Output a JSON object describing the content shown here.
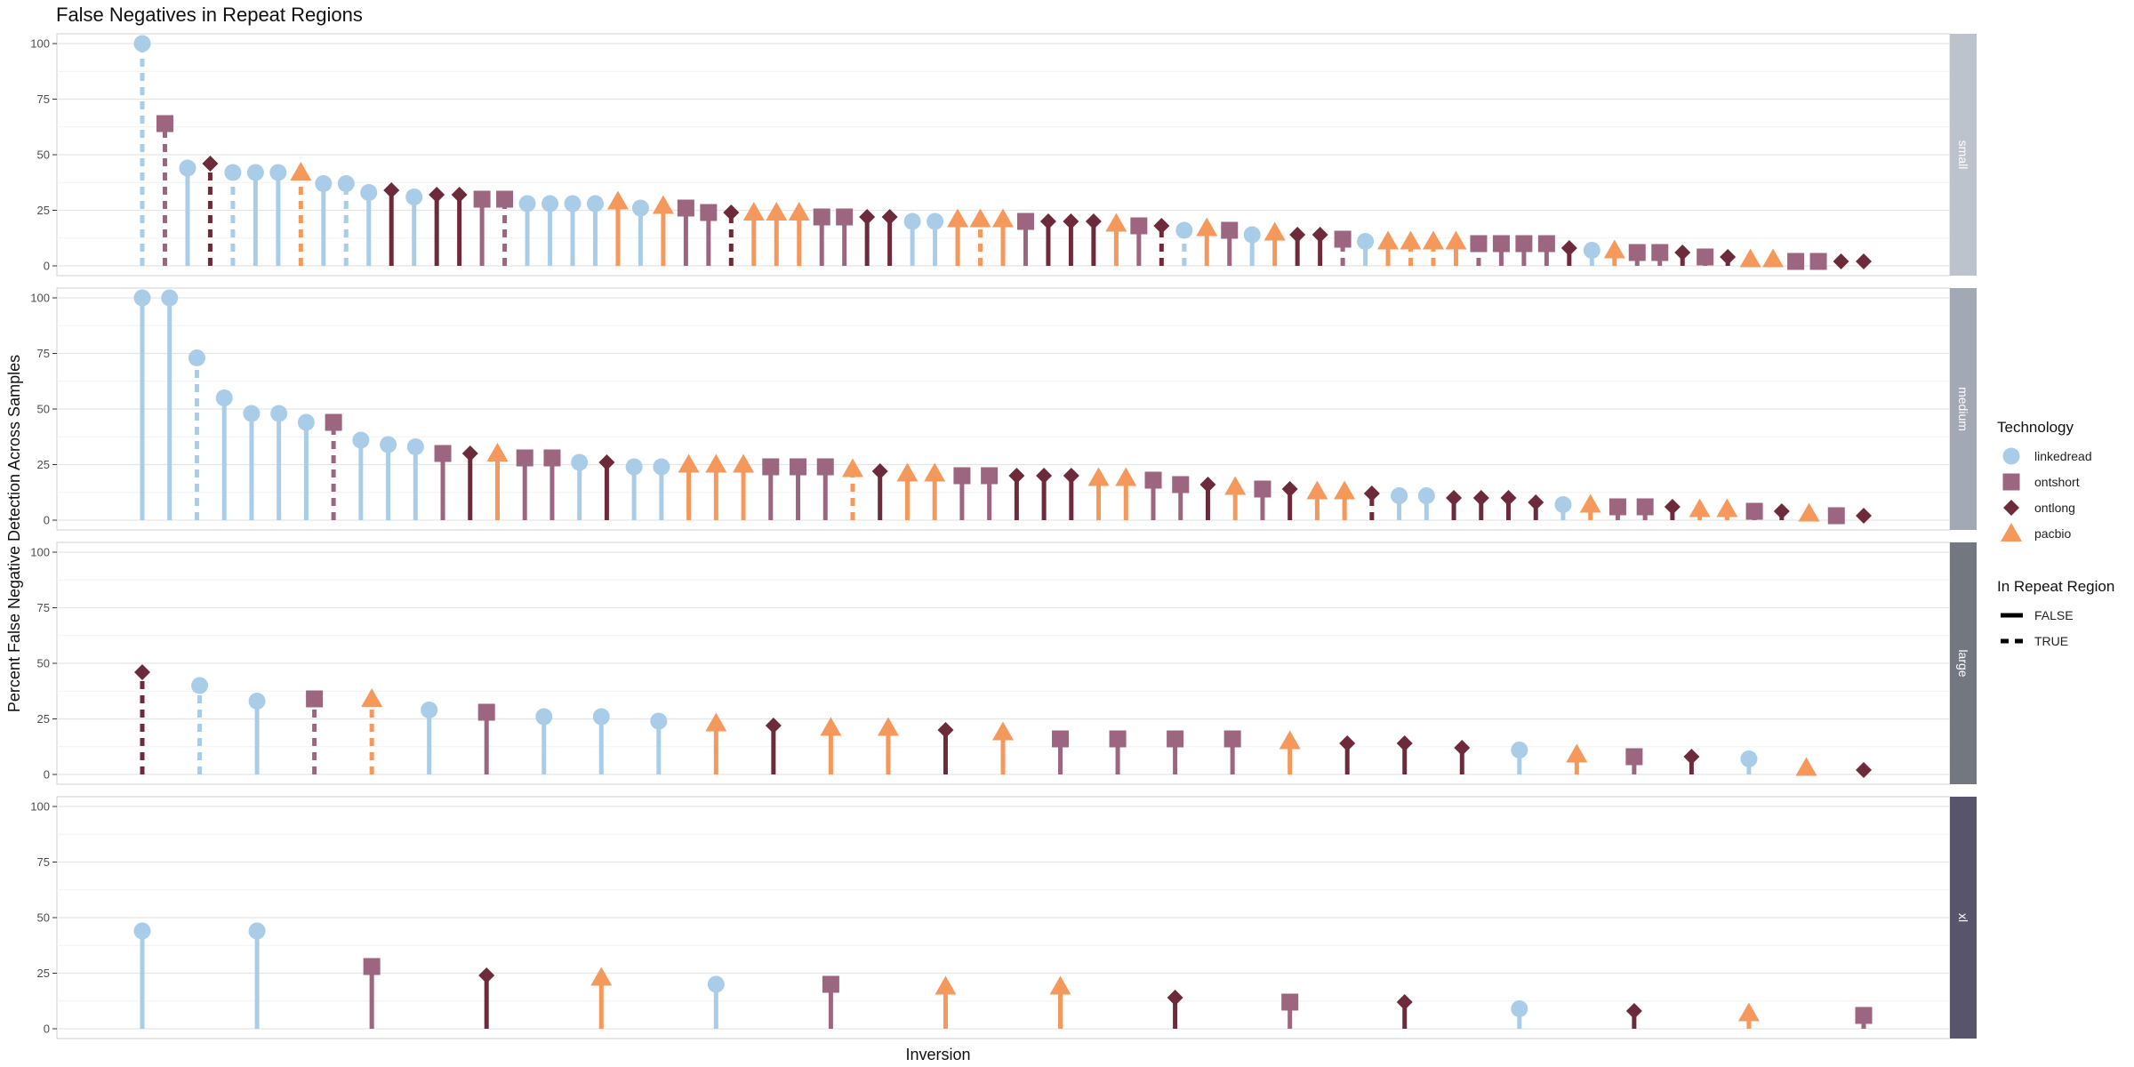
{
  "chart_data": {
    "type": "lollipop",
    "title": "False Negatives in Repeat Regions",
    "xlabel": "Inversion",
    "ylabel": "Percent False Negative Detection Across Samples",
    "ylim": [
      0,
      100
    ],
    "yticks": [
      0,
      25,
      50,
      75,
      100
    ],
    "grid": true,
    "legend_position": "right",
    "technology_legend": {
      "title": "Technology",
      "entries": [
        {
          "key": "linkedread",
          "label": "linkedread",
          "color": "#a9cde9",
          "shape": "circle"
        },
        {
          "key": "ontshort",
          "label": "ontshort",
          "color": "#9c6680",
          "shape": "square"
        },
        {
          "key": "ontlong",
          "label": "ontlong",
          "color": "#6d2a3a",
          "shape": "diamond"
        },
        {
          "key": "pacbio",
          "label": "pacbio",
          "color": "#f5985c",
          "shape": "triangle"
        }
      ]
    },
    "repeat_legend": {
      "title": "In Repeat Region",
      "entries": [
        {
          "key": "false",
          "label": "FALSE",
          "linestyle": "solid"
        },
        {
          "key": "true",
          "label": "TRUE",
          "linestyle": "dashed"
        }
      ]
    },
    "panels": [
      {
        "label": "small",
        "strip_color": "#bcc3cd",
        "points": [
          [
            "linkedread",
            100,
            true
          ],
          [
            "ontshort",
            64,
            true
          ],
          [
            "linkedread",
            44,
            false
          ],
          [
            "ontlong",
            46,
            true
          ],
          [
            "linkedread",
            42,
            true
          ],
          [
            "linkedread",
            42,
            false
          ],
          [
            "linkedread",
            42,
            false
          ],
          [
            "pacbio",
            42,
            true
          ],
          [
            "linkedread",
            37,
            false
          ],
          [
            "linkedread",
            37,
            true
          ],
          [
            "linkedread",
            33,
            false
          ],
          [
            "ontlong",
            34,
            false
          ],
          [
            "linkedread",
            31,
            false
          ],
          [
            "ontlong",
            32,
            false
          ],
          [
            "ontlong",
            32,
            false
          ],
          [
            "ontshort",
            30,
            false
          ],
          [
            "ontshort",
            30,
            true
          ],
          [
            "linkedread",
            28,
            false
          ],
          [
            "linkedread",
            28,
            false
          ],
          [
            "linkedread",
            28,
            false
          ],
          [
            "linkedread",
            28,
            false
          ],
          [
            "pacbio",
            29,
            false
          ],
          [
            "linkedread",
            26,
            false
          ],
          [
            "pacbio",
            27,
            false
          ],
          [
            "ontshort",
            26,
            false
          ],
          [
            "ontshort",
            24,
            false
          ],
          [
            "ontlong",
            24,
            true
          ],
          [
            "pacbio",
            24,
            false
          ],
          [
            "pacbio",
            24,
            false
          ],
          [
            "pacbio",
            24,
            false
          ],
          [
            "ontshort",
            22,
            false
          ],
          [
            "ontshort",
            22,
            false
          ],
          [
            "ontlong",
            22,
            false
          ],
          [
            "ontlong",
            22,
            false
          ],
          [
            "linkedread",
            20,
            false
          ],
          [
            "linkedread",
            20,
            false
          ],
          [
            "pacbio",
            21,
            false
          ],
          [
            "pacbio",
            21,
            true
          ],
          [
            "pacbio",
            21,
            false
          ],
          [
            "ontshort",
            20,
            false
          ],
          [
            "ontlong",
            20,
            false
          ],
          [
            "ontlong",
            20,
            false
          ],
          [
            "ontlong",
            20,
            false
          ],
          [
            "pacbio",
            19,
            false
          ],
          [
            "ontshort",
            18,
            false
          ],
          [
            "ontlong",
            18,
            true
          ],
          [
            "linkedread",
            16,
            true
          ],
          [
            "pacbio",
            17,
            false
          ],
          [
            "ontshort",
            16,
            false
          ],
          [
            "linkedread",
            14,
            false
          ],
          [
            "pacbio",
            15,
            false
          ],
          [
            "ontlong",
            14,
            false
          ],
          [
            "ontlong",
            14,
            false
          ],
          [
            "ontshort",
            12,
            true
          ],
          [
            "linkedread",
            11,
            false
          ],
          [
            "pacbio",
            11,
            false
          ],
          [
            "pacbio",
            11,
            true
          ],
          [
            "pacbio",
            11,
            true
          ],
          [
            "pacbio",
            11,
            false
          ],
          [
            "ontshort",
            10,
            true
          ],
          [
            "ontshort",
            10,
            false
          ],
          [
            "ontshort",
            10,
            false
          ],
          [
            "ontshort",
            10,
            false
          ],
          [
            "ontlong",
            8,
            false
          ],
          [
            "linkedread",
            7,
            false
          ],
          [
            "pacbio",
            7,
            false
          ],
          [
            "ontshort",
            6,
            false
          ],
          [
            "ontshort",
            6,
            true
          ],
          [
            "ontlong",
            6,
            false
          ],
          [
            "ontshort",
            4,
            false
          ],
          [
            "ontlong",
            4,
            false
          ],
          [
            "pacbio",
            3,
            false
          ],
          [
            "pacbio",
            3,
            false
          ],
          [
            "ontshort",
            2,
            false
          ],
          [
            "ontshort",
            2,
            false
          ],
          [
            "ontlong",
            2,
            false
          ],
          [
            "ontlong",
            2,
            false
          ]
        ]
      },
      {
        "label": "medium",
        "strip_color": "#a2a9b4",
        "points": [
          [
            "linkedread",
            100,
            false
          ],
          [
            "linkedread",
            100,
            false
          ],
          [
            "linkedread",
            73,
            true
          ],
          [
            "linkedread",
            55,
            false
          ],
          [
            "linkedread",
            48,
            false
          ],
          [
            "linkedread",
            48,
            false
          ],
          [
            "linkedread",
            44,
            false
          ],
          [
            "ontshort",
            44,
            true
          ],
          [
            "linkedread",
            36,
            false
          ],
          [
            "linkedread",
            34,
            false
          ],
          [
            "linkedread",
            33,
            false
          ],
          [
            "ontshort",
            30,
            false
          ],
          [
            "ontlong",
            30,
            false
          ],
          [
            "pacbio",
            30,
            false
          ],
          [
            "ontshort",
            28,
            false
          ],
          [
            "ontshort",
            28,
            false
          ],
          [
            "linkedread",
            26,
            false
          ],
          [
            "ontlong",
            26,
            false
          ],
          [
            "linkedread",
            24,
            false
          ],
          [
            "linkedread",
            24,
            false
          ],
          [
            "pacbio",
            25,
            false
          ],
          [
            "pacbio",
            25,
            false
          ],
          [
            "pacbio",
            25,
            false
          ],
          [
            "ontshort",
            24,
            false
          ],
          [
            "ontshort",
            24,
            false
          ],
          [
            "ontshort",
            24,
            false
          ],
          [
            "pacbio",
            23,
            true
          ],
          [
            "ontlong",
            22,
            false
          ],
          [
            "pacbio",
            21,
            false
          ],
          [
            "pacbio",
            21,
            false
          ],
          [
            "ontshort",
            20,
            false
          ],
          [
            "ontshort",
            20,
            false
          ],
          [
            "ontlong",
            20,
            false
          ],
          [
            "ontlong",
            20,
            false
          ],
          [
            "ontlong",
            20,
            false
          ],
          [
            "pacbio",
            19,
            false
          ],
          [
            "pacbio",
            19,
            false
          ],
          [
            "ontshort",
            18,
            false
          ],
          [
            "ontshort",
            16,
            false
          ],
          [
            "ontlong",
            16,
            false
          ],
          [
            "pacbio",
            15,
            false
          ],
          [
            "ontshort",
            14,
            false
          ],
          [
            "ontlong",
            14,
            false
          ],
          [
            "pacbio",
            13,
            false
          ],
          [
            "pacbio",
            13,
            false
          ],
          [
            "ontlong",
            12,
            true
          ],
          [
            "linkedread",
            11,
            false
          ],
          [
            "linkedread",
            11,
            false
          ],
          [
            "ontlong",
            10,
            false
          ],
          [
            "ontlong",
            10,
            false
          ],
          [
            "ontlong",
            10,
            false
          ],
          [
            "ontlong",
            8,
            false
          ],
          [
            "linkedread",
            7,
            false
          ],
          [
            "pacbio",
            7,
            false
          ],
          [
            "ontshort",
            6,
            false
          ],
          [
            "ontshort",
            6,
            false
          ],
          [
            "ontlong",
            6,
            false
          ],
          [
            "pacbio",
            5,
            false
          ],
          [
            "pacbio",
            5,
            false
          ],
          [
            "ontshort",
            4,
            false
          ],
          [
            "ontlong",
            4,
            false
          ],
          [
            "pacbio",
            3,
            false
          ],
          [
            "ontshort",
            2,
            false
          ],
          [
            "ontlong",
            2,
            false
          ]
        ]
      },
      {
        "label": "large",
        "strip_color": "#737780",
        "points": [
          [
            "ontlong",
            46,
            true
          ],
          [
            "linkedread",
            40,
            true
          ],
          [
            "linkedread",
            33,
            false
          ],
          [
            "ontshort",
            34,
            true
          ],
          [
            "pacbio",
            34,
            true
          ],
          [
            "linkedread",
            29,
            false
          ],
          [
            "ontshort",
            28,
            false
          ],
          [
            "linkedread",
            26,
            false
          ],
          [
            "linkedread",
            26,
            false
          ],
          [
            "linkedread",
            24,
            false
          ],
          [
            "pacbio",
            23,
            false
          ],
          [
            "ontlong",
            22,
            false
          ],
          [
            "pacbio",
            21,
            false
          ],
          [
            "pacbio",
            21,
            false
          ],
          [
            "ontlong",
            20,
            false
          ],
          [
            "pacbio",
            19,
            false
          ],
          [
            "ontshort",
            16,
            false
          ],
          [
            "ontshort",
            16,
            false
          ],
          [
            "ontshort",
            16,
            false
          ],
          [
            "ontshort",
            16,
            false
          ],
          [
            "pacbio",
            15,
            false
          ],
          [
            "ontlong",
            14,
            false
          ],
          [
            "ontlong",
            14,
            false
          ],
          [
            "ontlong",
            12,
            false
          ],
          [
            "linkedread",
            11,
            false
          ],
          [
            "pacbio",
            9,
            false
          ],
          [
            "ontshort",
            8,
            false
          ],
          [
            "ontlong",
            8,
            false
          ],
          [
            "linkedread",
            7,
            false
          ],
          [
            "pacbio",
            3,
            false
          ],
          [
            "ontlong",
            2,
            false
          ]
        ]
      },
      {
        "label": "xl",
        "strip_color": "#57546b",
        "points": [
          [
            "linkedread",
            44,
            false
          ],
          [
            "linkedread",
            44,
            false
          ],
          [
            "ontshort",
            28,
            false
          ],
          [
            "ontlong",
            24,
            false
          ],
          [
            "pacbio",
            23,
            false
          ],
          [
            "linkedread",
            20,
            false
          ],
          [
            "ontshort",
            20,
            false
          ],
          [
            "pacbio",
            19,
            false
          ],
          [
            "pacbio",
            19,
            false
          ],
          [
            "ontlong",
            14,
            false
          ],
          [
            "ontshort",
            12,
            false
          ],
          [
            "ontlong",
            12,
            false
          ],
          [
            "linkedread",
            9,
            false
          ],
          [
            "ontlong",
            8,
            false
          ],
          [
            "pacbio",
            7,
            false
          ],
          [
            "ontshort",
            6,
            false
          ]
        ]
      }
    ]
  }
}
